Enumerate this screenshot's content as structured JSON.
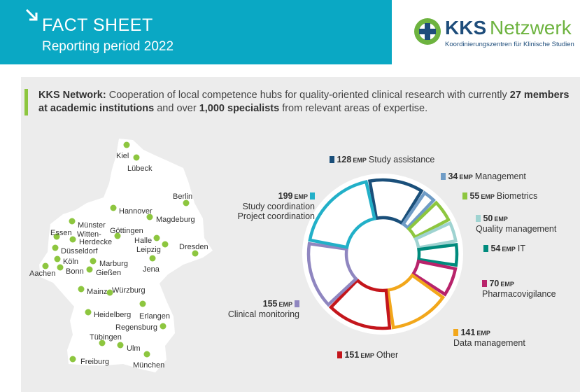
{
  "header": {
    "title": "FACT SHEET",
    "subtitle": "Reporting period 2022"
  },
  "logo": {
    "name_part1": "KKS",
    "name_part2": "Netzwerk",
    "tagline": "Koordinierungszentren für Klinische Studien"
  },
  "intro": {
    "lead": "KKS Network:",
    "text1": "Cooperation of local competence hubs for quality-oriented clinical research with currently",
    "bold1": "27 members at academic institutions",
    "text2": "and over",
    "bold2": "1,000 specialists",
    "text3": "from relevant areas of expertise."
  },
  "map": {
    "cities": [
      "Kiel",
      "Lübeck",
      "Berlin",
      "Hannover",
      "Magdeburg",
      "Münster",
      "Göttingen",
      "Essen",
      "Witten-",
      "Herdecke",
      "Halle",
      "Leipzig",
      "Dresden",
      "Düsseldorf",
      "Köln",
      "Marburg",
      "Jena",
      "Aachen",
      "Bonn",
      "Gießen",
      "Mainz",
      "Würzburg",
      "Heidelberg",
      "Erlangen",
      "Regensburg",
      "Tübingen",
      "Ulm",
      "Freiburg",
      "München"
    ]
  },
  "chart_data": {
    "type": "donut",
    "unit": "EMP",
    "categories": [
      "Study assistance",
      "Management",
      "Biometrics",
      "Quality management",
      "IT",
      "Pharmacovigilance",
      "Data management",
      "Other",
      "Clinical monitoring",
      "Study coordination\nProject coordination"
    ],
    "values": [
      128,
      34,
      55,
      50,
      54,
      70,
      141,
      151,
      155,
      199
    ],
    "colors": [
      "#1a4f7a",
      "#6f9cc6",
      "#8dc63f",
      "#9fd3d1",
      "#008b7d",
      "#b8236b",
      "#f2a71b",
      "#c4161c",
      "#8f86c0",
      "#22b0c8"
    ]
  }
}
